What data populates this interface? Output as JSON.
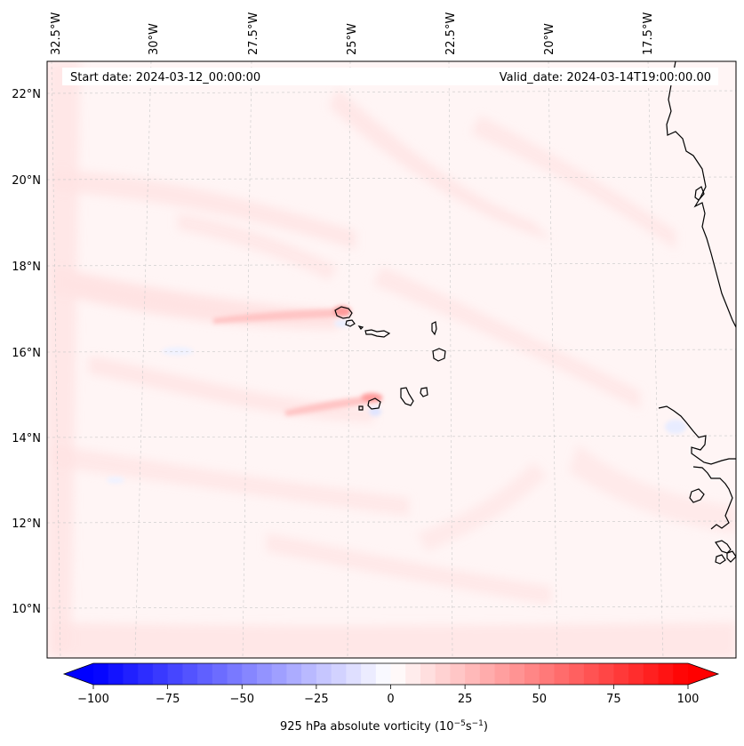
{
  "map": {
    "start_date": "Start date: 2024-03-12_00:00:00",
    "valid_date": "Valid_date: 2024-03-14T19:00:00.00",
    "lon_labels": [
      "32.5°W",
      "30°W",
      "27.5°W",
      "25°W",
      "22.5°W",
      "20°W",
      "17.5°W"
    ],
    "lat_labels": [
      "22°N",
      "20°N",
      "18°N",
      "16°N",
      "14°N",
      "12°N",
      "10°N"
    ],
    "field": "925 hPa absolute vorticity",
    "colors": {
      "positive": "#ff0000",
      "negative": "#0000ff",
      "neutral": "#ffffff",
      "coast": "#000000"
    }
  },
  "colorbar": {
    "label": "925 hPa absolute vorticity",
    "units_base": "10",
    "units_exp1": "−5",
    "units_s": "s",
    "units_exp2": "−1",
    "vmin": -100,
    "vmax": 100,
    "ticks": [
      "−100",
      "−75",
      "−50",
      "−25",
      "0",
      "25",
      "50",
      "75",
      "100"
    ],
    "tick_values": [
      -100,
      -75,
      -50,
      -25,
      0,
      25,
      50,
      75,
      100
    ],
    "levels": 40
  }
}
